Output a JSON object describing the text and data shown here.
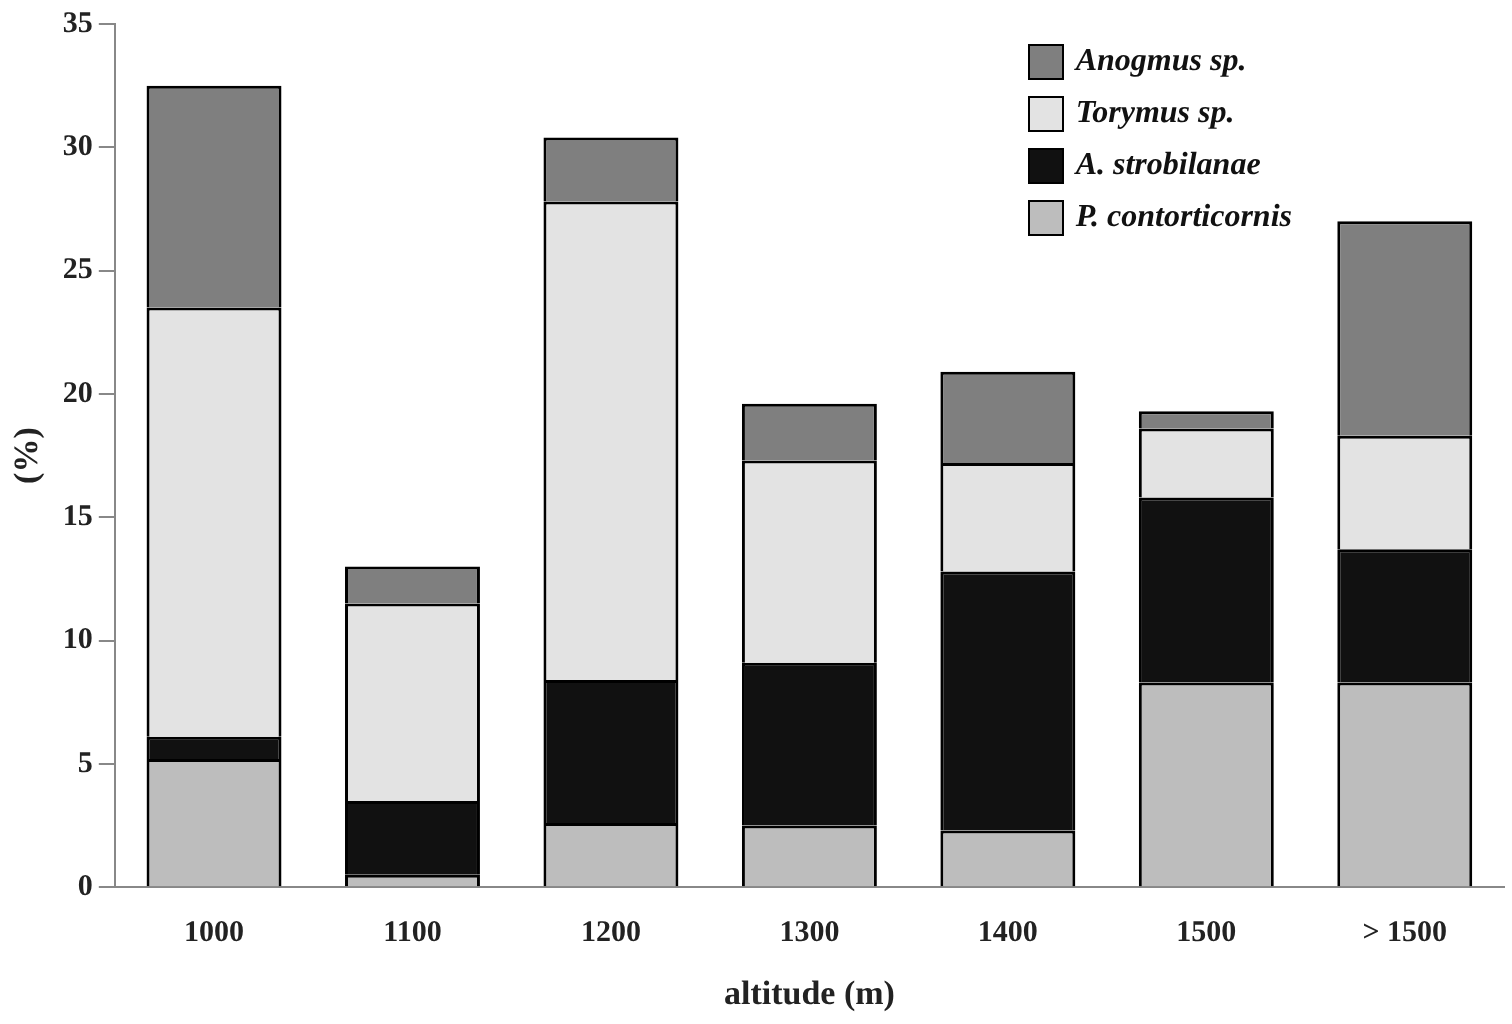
{
  "chart_data": {
    "type": "bar",
    "stacked": true,
    "xlabel": "altitude (m)",
    "ylabel": "(%)",
    "categories": [
      "1000",
      "1100",
      "1200",
      "1300",
      "1400",
      "1500",
      "> 1500"
    ],
    "series": [
      {
        "name": "P. contorticornis",
        "color": "#bdbdbd",
        "values": [
          5.2,
          0.5,
          2.6,
          2.5,
          2.3,
          8.3,
          8.3
        ]
      },
      {
        "name": "A. strobilanae",
        "color": "#111111",
        "values": [
          0.9,
          3.0,
          5.8,
          6.6,
          10.5,
          7.5,
          5.4
        ]
      },
      {
        "name": "Torymus sp.",
        "color": "#e3e3e3",
        "values": [
          17.4,
          8.0,
          19.4,
          8.2,
          4.4,
          2.8,
          4.6
        ]
      },
      {
        "name": "Anogmus sp.",
        "color": "#7f7f7f",
        "values": [
          9.0,
          1.5,
          2.6,
          2.3,
          3.7,
          0.7,
          8.7
        ]
      }
    ],
    "ylim": [
      0,
      35
    ],
    "yticks": [
      0,
      5,
      10,
      15,
      20,
      25,
      30,
      35
    ],
    "grid": false,
    "legend": "top right"
  }
}
